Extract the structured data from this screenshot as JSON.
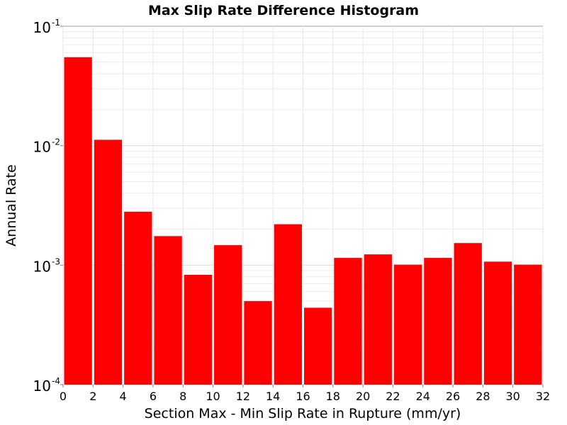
{
  "chart_data": {
    "type": "bar",
    "title": "Max Slip Rate Difference Histogram",
    "xlabel": "Section Max - Min Slip Rate in Rupture (mm/yr)",
    "ylabel": "Annual Rate",
    "xlim": [
      0,
      32
    ],
    "ylim": [
      0.0001,
      0.1
    ],
    "yscale": "log",
    "bin_width": 2,
    "bar_color": "#ff0000",
    "grid": true,
    "x_ticks": [
      0,
      2,
      4,
      6,
      8,
      10,
      12,
      14,
      16,
      18,
      20,
      22,
      24,
      26,
      28,
      30,
      32
    ],
    "y_ticks": [
      {
        "base": "10",
        "exp": "-4",
        "value": 0.0001
      },
      {
        "base": "10",
        "exp": "-3",
        "value": 0.001
      },
      {
        "base": "10",
        "exp": "-2",
        "value": 0.01
      },
      {
        "base": "10",
        "exp": "-1",
        "value": 0.1
      }
    ],
    "bins": [
      {
        "x": 1,
        "value": 0.055
      },
      {
        "x": 3,
        "value": 0.0112
      },
      {
        "x": 5,
        "value": 0.0028
      },
      {
        "x": 7,
        "value": 0.00175
      },
      {
        "x": 9,
        "value": 0.00083
      },
      {
        "x": 11,
        "value": 0.00147
      },
      {
        "x": 13,
        "value": 0.0005
      },
      {
        "x": 15,
        "value": 0.0022
      },
      {
        "x": 17,
        "value": 0.00044
      },
      {
        "x": 19,
        "value": 0.00115
      },
      {
        "x": 21,
        "value": 0.00123
      },
      {
        "x": 23,
        "value": 0.00101
      },
      {
        "x": 25,
        "value": 0.00115
      },
      {
        "x": 27,
        "value": 0.00153
      },
      {
        "x": 29,
        "value": 0.00107
      },
      {
        "x": 31,
        "value": 0.00101
      }
    ]
  }
}
